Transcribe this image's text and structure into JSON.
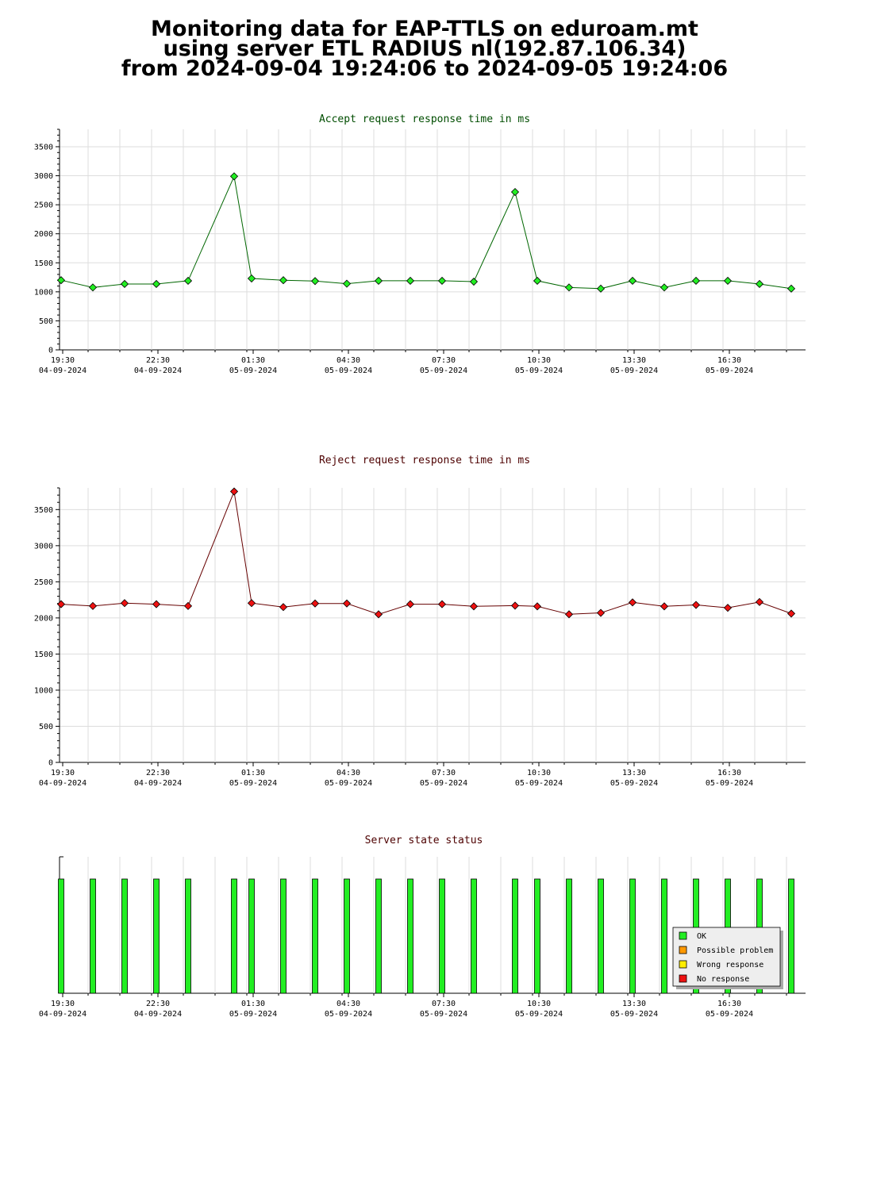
{
  "page": {
    "title_lines": [
      "Monitoring data for EAP-TTLS on eduroam.mt",
      "using server ETL RADIUS nl(192.87.106.34)",
      "from 2024-09-04 19:24:06 to 2024-09-05 19:24:06"
    ]
  },
  "colors": {
    "accept_title": "#004d00",
    "reject_title": "#4d0000",
    "status_title": "#4d0000",
    "accept_marker": "#22ee22",
    "accept_line": "#006600",
    "reject_marker": "#ee1111",
    "reject_line": "#660000",
    "grid": "#dddddd",
    "legend_ok": "#22ee22",
    "legend_possible": "#ff9900",
    "legend_wrong": "#ffee00",
    "legend_none": "#ee1111"
  },
  "x_ticks": [
    {
      "h": 0.1,
      "time": "19:30",
      "date": "04-09-2024"
    },
    {
      "h": 3.1,
      "time": "22:30",
      "date": "04-09-2024"
    },
    {
      "h": 6.1,
      "time": "01:30",
      "date": "05-09-2024"
    },
    {
      "h": 9.1,
      "time": "04:30",
      "date": "05-09-2024"
    },
    {
      "h": 12.1,
      "time": "07:30",
      "date": "05-09-2024"
    },
    {
      "h": 15.1,
      "time": "10:30",
      "date": "05-09-2024"
    },
    {
      "h": 18.1,
      "time": "13:30",
      "date": "05-09-2024"
    },
    {
      "h": 21.1,
      "time": "16:30",
      "date": "05-09-2024"
    }
  ],
  "chart_data": [
    {
      "type": "line",
      "title": "Accept request response time in ms",
      "x_unit": "hours since 2024-09-04 19:24:06",
      "ylim": [
        0,
        3800
      ],
      "yticks": [
        0,
        500,
        1000,
        1500,
        2000,
        2500,
        3000,
        3500
      ],
      "grid": true,
      "x": [
        0.05,
        1.05,
        2.05,
        3.05,
        4.05,
        5.5,
        6.05,
        7.05,
        8.05,
        9.05,
        10.05,
        11.05,
        12.05,
        13.05,
        14.35,
        15.05,
        16.05,
        17.05,
        18.05,
        19.05,
        20.05,
        21.05,
        22.05,
        23.05
      ],
      "values": [
        1200,
        1075,
        1135,
        1135,
        1190,
        2990,
        1230,
        1200,
        1185,
        1140,
        1190,
        1190,
        1190,
        1175,
        2720,
        1190,
        1075,
        1055,
        1190,
        1075,
        1190,
        1190,
        1135,
        1055
      ]
    },
    {
      "type": "line",
      "title": "Reject request response time in ms",
      "x_unit": "hours since 2024-09-04 19:24:06",
      "ylim": [
        0,
        3800
      ],
      "yticks": [
        0,
        500,
        1000,
        1500,
        2000,
        2500,
        3000,
        3500
      ],
      "grid": true,
      "x": [
        0.05,
        1.05,
        2.05,
        3.05,
        4.05,
        5.5,
        6.05,
        7.05,
        8.05,
        9.05,
        10.05,
        11.05,
        12.05,
        13.05,
        14.35,
        15.05,
        16.05,
        17.05,
        18.05,
        19.05,
        20.05,
        21.05,
        22.05,
        23.05
      ],
      "values": [
        2190,
        2165,
        2205,
        2190,
        2165,
        3750,
        2205,
        2150,
        2200,
        2200,
        2050,
        2190,
        2190,
        2160,
        2170,
        2160,
        2050,
        2070,
        2215,
        2160,
        2180,
        2140,
        2220,
        2060
      ]
    },
    {
      "type": "bar",
      "title": "Server state status",
      "x_unit": "hours since 2024-09-04 19:24:06",
      "x": [
        0.05,
        1.05,
        2.05,
        3.05,
        4.05,
        5.5,
        6.05,
        7.05,
        8.05,
        9.05,
        10.05,
        11.05,
        12.05,
        13.05,
        14.35,
        15.05,
        16.05,
        17.05,
        18.05,
        19.05,
        20.05,
        21.05,
        22.05,
        23.05
      ],
      "states": [
        "OK",
        "OK",
        "OK",
        "OK",
        "OK",
        "OK",
        "OK",
        "OK",
        "OK",
        "OK",
        "OK",
        "OK",
        "OK",
        "OK",
        "OK",
        "OK",
        "OK",
        "OK",
        "OK",
        "OK",
        "OK",
        "OK",
        "OK",
        "OK"
      ],
      "legend": [
        "OK",
        "Possible problem",
        "Wrong response",
        "No response"
      ],
      "legend_position": "bottom-right"
    }
  ]
}
